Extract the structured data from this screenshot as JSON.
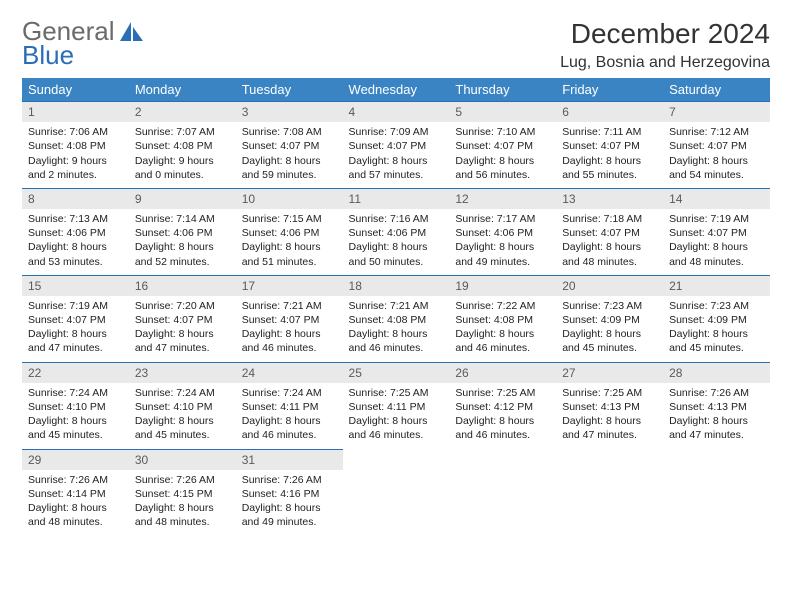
{
  "brand": {
    "word1": "General",
    "word2": "Blue",
    "color_gray": "#6b6b6b",
    "color_blue": "#2a6fb5"
  },
  "title": "December 2024",
  "location": "Lug, Bosnia and Herzegovina",
  "weekdays": [
    "Sunday",
    "Monday",
    "Tuesday",
    "Wednesday",
    "Thursday",
    "Friday",
    "Saturday"
  ],
  "header_bg": "#3a84c4",
  "daynum_bg": "#e9e9e9",
  "rule_color": "#2a6fb5",
  "days": [
    {
      "n": "1",
      "sr": "7:06 AM",
      "ss": "4:08 PM",
      "dl": "9 hours and 2 minutes."
    },
    {
      "n": "2",
      "sr": "7:07 AM",
      "ss": "4:08 PM",
      "dl": "9 hours and 0 minutes."
    },
    {
      "n": "3",
      "sr": "7:08 AM",
      "ss": "4:07 PM",
      "dl": "8 hours and 59 minutes."
    },
    {
      "n": "4",
      "sr": "7:09 AM",
      "ss": "4:07 PM",
      "dl": "8 hours and 57 minutes."
    },
    {
      "n": "5",
      "sr": "7:10 AM",
      "ss": "4:07 PM",
      "dl": "8 hours and 56 minutes."
    },
    {
      "n": "6",
      "sr": "7:11 AM",
      "ss": "4:07 PM",
      "dl": "8 hours and 55 minutes."
    },
    {
      "n": "7",
      "sr": "7:12 AM",
      "ss": "4:07 PM",
      "dl": "8 hours and 54 minutes."
    },
    {
      "n": "8",
      "sr": "7:13 AM",
      "ss": "4:06 PM",
      "dl": "8 hours and 53 minutes."
    },
    {
      "n": "9",
      "sr": "7:14 AM",
      "ss": "4:06 PM",
      "dl": "8 hours and 52 minutes."
    },
    {
      "n": "10",
      "sr": "7:15 AM",
      "ss": "4:06 PM",
      "dl": "8 hours and 51 minutes."
    },
    {
      "n": "11",
      "sr": "7:16 AM",
      "ss": "4:06 PM",
      "dl": "8 hours and 50 minutes."
    },
    {
      "n": "12",
      "sr": "7:17 AM",
      "ss": "4:06 PM",
      "dl": "8 hours and 49 minutes."
    },
    {
      "n": "13",
      "sr": "7:18 AM",
      "ss": "4:07 PM",
      "dl": "8 hours and 48 minutes."
    },
    {
      "n": "14",
      "sr": "7:19 AM",
      "ss": "4:07 PM",
      "dl": "8 hours and 48 minutes."
    },
    {
      "n": "15",
      "sr": "7:19 AM",
      "ss": "4:07 PM",
      "dl": "8 hours and 47 minutes."
    },
    {
      "n": "16",
      "sr": "7:20 AM",
      "ss": "4:07 PM",
      "dl": "8 hours and 47 minutes."
    },
    {
      "n": "17",
      "sr": "7:21 AM",
      "ss": "4:07 PM",
      "dl": "8 hours and 46 minutes."
    },
    {
      "n": "18",
      "sr": "7:21 AM",
      "ss": "4:08 PM",
      "dl": "8 hours and 46 minutes."
    },
    {
      "n": "19",
      "sr": "7:22 AM",
      "ss": "4:08 PM",
      "dl": "8 hours and 46 minutes."
    },
    {
      "n": "20",
      "sr": "7:23 AM",
      "ss": "4:09 PM",
      "dl": "8 hours and 45 minutes."
    },
    {
      "n": "21",
      "sr": "7:23 AM",
      "ss": "4:09 PM",
      "dl": "8 hours and 45 minutes."
    },
    {
      "n": "22",
      "sr": "7:24 AM",
      "ss": "4:10 PM",
      "dl": "8 hours and 45 minutes."
    },
    {
      "n": "23",
      "sr": "7:24 AM",
      "ss": "4:10 PM",
      "dl": "8 hours and 45 minutes."
    },
    {
      "n": "24",
      "sr": "7:24 AM",
      "ss": "4:11 PM",
      "dl": "8 hours and 46 minutes."
    },
    {
      "n": "25",
      "sr": "7:25 AM",
      "ss": "4:11 PM",
      "dl": "8 hours and 46 minutes."
    },
    {
      "n": "26",
      "sr": "7:25 AM",
      "ss": "4:12 PM",
      "dl": "8 hours and 46 minutes."
    },
    {
      "n": "27",
      "sr": "7:25 AM",
      "ss": "4:13 PM",
      "dl": "8 hours and 47 minutes."
    },
    {
      "n": "28",
      "sr": "7:26 AM",
      "ss": "4:13 PM",
      "dl": "8 hours and 47 minutes."
    },
    {
      "n": "29",
      "sr": "7:26 AM",
      "ss": "4:14 PM",
      "dl": "8 hours and 48 minutes."
    },
    {
      "n": "30",
      "sr": "7:26 AM",
      "ss": "4:15 PM",
      "dl": "8 hours and 48 minutes."
    },
    {
      "n": "31",
      "sr": "7:26 AM",
      "ss": "4:16 PM",
      "dl": "8 hours and 49 minutes."
    }
  ],
  "labels": {
    "sunrise": "Sunrise: ",
    "sunset": "Sunset: ",
    "daylight": "Daylight: "
  }
}
